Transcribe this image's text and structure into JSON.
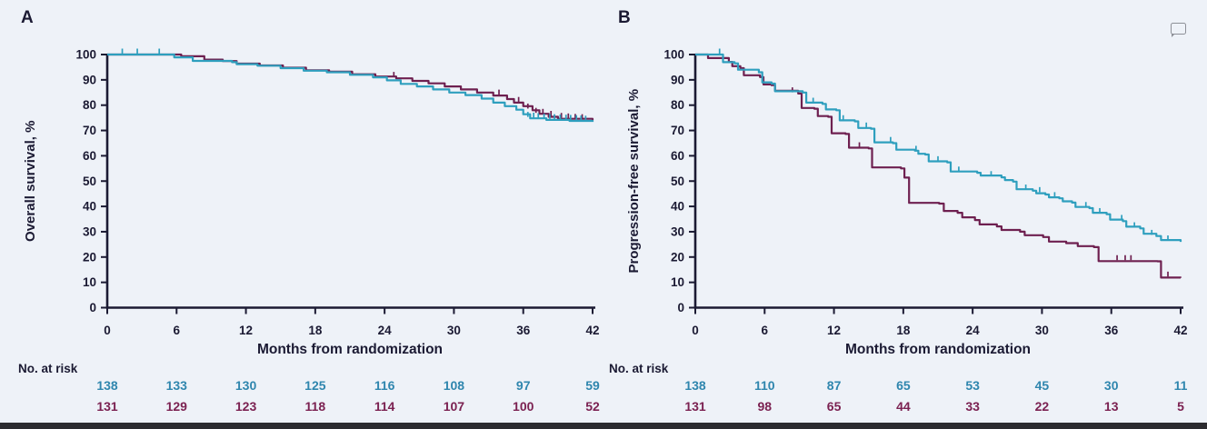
{
  "page": {
    "background_color": "#eef2f8",
    "bottom_bar_color": "#2c2c30",
    "comment_icon": "speech-bubble-icon"
  },
  "chart_data": [
    {
      "type": "line",
      "panel_label": "A",
      "ylabel": "Overall survival, %",
      "xlabel": "Months from randomization",
      "xlim": [
        0,
        42
      ],
      "ylim": [
        0,
        100
      ],
      "xticks": [
        0,
        6,
        12,
        18,
        24,
        30,
        36,
        42
      ],
      "yticks": [
        0,
        10,
        20,
        30,
        40,
        50,
        60,
        70,
        80,
        90,
        100
      ],
      "grid": false,
      "legend": "none",
      "at_risk": {
        "label": "No. at risk",
        "rows": [
          {
            "name": "group-teal",
            "color": "#2f86ae",
            "counts": [
              138,
              133,
              130,
              125,
              116,
              108,
              97,
              59
            ]
          },
          {
            "name": "group-maroon",
            "color": "#7b2151",
            "counts": [
              131,
              129,
              123,
              118,
              114,
              107,
              100,
              52
            ]
          }
        ]
      },
      "series": [
        {
          "name": "group-maroon",
          "color": "#6e2050",
          "points": [
            [
              0,
              100
            ],
            [
              6.2,
              100
            ],
            [
              6.4,
              99.3
            ],
            [
              8.2,
              99.3
            ],
            [
              8.4,
              98
            ],
            [
              10,
              97.4
            ],
            [
              11.2,
              96.4
            ],
            [
              13.2,
              95.7
            ],
            [
              15.2,
              94.8
            ],
            [
              17.2,
              93.8
            ],
            [
              19.2,
              93.2
            ],
            [
              21.2,
              92.2
            ],
            [
              23.2,
              91.3
            ],
            [
              25,
              90.6
            ],
            [
              26.4,
              89.6
            ],
            [
              27.8,
              88.6
            ],
            [
              29.2,
              87.4
            ],
            [
              30.6,
              86.2
            ],
            [
              32,
              85
            ],
            [
              33.4,
              83.8
            ],
            [
              34.6,
              82.4
            ],
            [
              35.2,
              81
            ],
            [
              36,
              79.6
            ],
            [
              36.8,
              78
            ],
            [
              37.4,
              76.6
            ],
            [
              38.2,
              75.4
            ],
            [
              39,
              74.6
            ],
            [
              42,
              74
            ]
          ],
          "censor_marks": [
            [
              24.8,
              90.8
            ],
            [
              33.9,
              83.8
            ],
            [
              35.6,
              80.9
            ],
            [
              36.4,
              78.3
            ],
            [
              37.1,
              76.6
            ],
            [
              37.7,
              76.2
            ],
            [
              38.4,
              75.4
            ],
            [
              39.3,
              74.6
            ],
            [
              39.9,
              74.4
            ],
            [
              40.5,
              74.2
            ],
            [
              41.1,
              74.1
            ]
          ]
        },
        {
          "name": "group-teal",
          "color": "#2e9fbe",
          "points": [
            [
              0,
              100
            ],
            [
              5.6,
              100
            ],
            [
              5.8,
              98.9
            ],
            [
              7.2,
              98.9
            ],
            [
              7.4,
              97.5
            ],
            [
              10.8,
              97
            ],
            [
              11.2,
              96.2
            ],
            [
              13,
              95.6
            ],
            [
              15,
              94.6
            ],
            [
              17,
              93.6
            ],
            [
              19,
              93
            ],
            [
              21,
              92
            ],
            [
              23,
              91
            ],
            [
              24.2,
              89.8
            ],
            [
              25.4,
              88.4
            ],
            [
              26.8,
              87.4
            ],
            [
              28.2,
              86.2
            ],
            [
              29.6,
              85
            ],
            [
              31,
              84
            ],
            [
              32.4,
              82.6
            ],
            [
              33.4,
              81
            ],
            [
              34.4,
              79.6
            ],
            [
              35.4,
              78.2
            ],
            [
              36,
              76.4
            ],
            [
              36.6,
              74.8
            ],
            [
              38,
              74.2
            ],
            [
              40,
              73.8
            ],
            [
              42,
              73.4
            ]
          ],
          "censor_marks": [
            [
              1.3,
              100
            ],
            [
              2.6,
              100
            ],
            [
              4.5,
              100
            ],
            [
              36.4,
              75
            ],
            [
              36.9,
              74.7
            ],
            [
              37.3,
              74.5
            ],
            [
              37.8,
              74.3
            ],
            [
              38.3,
              74.2
            ],
            [
              38.7,
              74.1
            ],
            [
              39.2,
              74
            ],
            [
              39.7,
              73.9
            ],
            [
              40.1,
              73.8
            ],
            [
              40.6,
              73.7
            ],
            [
              41,
              73.6
            ],
            [
              41.4,
              73.5
            ]
          ]
        }
      ]
    },
    {
      "type": "line",
      "panel_label": "B",
      "ylabel": "Progression-free survival, %",
      "xlabel": "Months from randomization",
      "xlim": [
        0,
        42
      ],
      "ylim": [
        0,
        100
      ],
      "xticks": [
        0,
        6,
        12,
        18,
        24,
        30,
        36,
        42
      ],
      "yticks": [
        0,
        10,
        20,
        30,
        40,
        50,
        60,
        70,
        80,
        90,
        100
      ],
      "grid": false,
      "legend": "none",
      "at_risk": {
        "label": "No. at risk",
        "rows": [
          {
            "name": "group-teal",
            "color": "#2f86ae",
            "counts": [
              138,
              110,
              87,
              65,
              53,
              45,
              30,
              11
            ]
          },
          {
            "name": "group-maroon",
            "color": "#7b2151",
            "counts": [
              131,
              98,
              65,
              44,
              33,
              22,
              13,
              5
            ]
          }
        ]
      },
      "series": [
        {
          "name": "group-maroon",
          "color": "#6e2050",
          "points": [
            [
              0,
              100
            ],
            [
              0.9,
              100
            ],
            [
              1.1,
              98.6
            ],
            [
              2.9,
              97.1
            ],
            [
              3.2,
              95.4
            ],
            [
              3.9,
              94.6
            ],
            [
              4.2,
              91.8
            ],
            [
              5.6,
              91.1
            ],
            [
              5.9,
              88.2
            ],
            [
              6.6,
              87.9
            ],
            [
              6.9,
              85.7
            ],
            [
              8.9,
              84.6
            ],
            [
              9.2,
              78.9
            ],
            [
              10.3,
              78.6
            ],
            [
              10.6,
              75.7
            ],
            [
              11.5,
              75.4
            ],
            [
              11.8,
              68.9
            ],
            [
              13,
              68.6
            ],
            [
              13.3,
              63.2
            ],
            [
              15,
              62.9
            ],
            [
              15.3,
              55.4
            ],
            [
              17.8,
              55
            ],
            [
              18.1,
              51.4
            ],
            [
              18.5,
              41.4
            ],
            [
              21.1,
              41.1
            ],
            [
              21.5,
              38.2
            ],
            [
              22.7,
              37.5
            ],
            [
              23.1,
              35.7
            ],
            [
              24.2,
              34.6
            ],
            [
              24.6,
              32.9
            ],
            [
              26.1,
              32.1
            ],
            [
              26.5,
              30.7
            ],
            [
              28.1,
              30
            ],
            [
              28.5,
              28.6
            ],
            [
              30.1,
              27.9
            ],
            [
              30.6,
              26.1
            ],
            [
              32.1,
              25.5
            ],
            [
              33.1,
              24.3
            ],
            [
              34.5,
              23.9
            ],
            [
              34.9,
              18.4
            ],
            [
              40,
              18.3
            ],
            [
              40.3,
              11.9
            ],
            [
              42,
              11.8
            ]
          ],
          "censor_marks": [
            [
              8.4,
              84.7
            ],
            [
              14.2,
              63
            ],
            [
              36.5,
              18.4
            ],
            [
              37.2,
              18.4
            ],
            [
              37.7,
              18.4
            ],
            [
              40.9,
              11.9
            ]
          ]
        },
        {
          "name": "group-teal",
          "color": "#2e9fbe",
          "points": [
            [
              0,
              100
            ],
            [
              2.2,
              100
            ],
            [
              2.4,
              97
            ],
            [
              3.4,
              96.5
            ],
            [
              3.7,
              94
            ],
            [
              5.5,
              93
            ],
            [
              5.8,
              89
            ],
            [
              6.6,
              88.5
            ],
            [
              6.9,
              85.5
            ],
            [
              9.3,
              85
            ],
            [
              9.6,
              81
            ],
            [
              11,
              80.5
            ],
            [
              11.3,
              78.3
            ],
            [
              12.2,
              78
            ],
            [
              12.5,
              74
            ],
            [
              13.8,
              73.6
            ],
            [
              14.1,
              71
            ],
            [
              15.2,
              70.7
            ],
            [
              15.5,
              65.3
            ],
            [
              17.1,
              65
            ],
            [
              17.4,
              62.4
            ],
            [
              19,
              62
            ],
            [
              19.3,
              60.8
            ],
            [
              19.9,
              60.5
            ],
            [
              20.2,
              57.8
            ],
            [
              21.8,
              57.4
            ],
            [
              22.1,
              53.8
            ],
            [
              24.4,
              53.3
            ],
            [
              24.7,
              52.2
            ],
            [
              26.5,
              51.5
            ],
            [
              26.8,
              50.4
            ],
            [
              27.5,
              49.8
            ],
            [
              27.8,
              46.8
            ],
            [
              29.2,
              46.2
            ],
            [
              29.5,
              45.2
            ],
            [
              30.3,
              44.7
            ],
            [
              30.6,
              43.6
            ],
            [
              31.5,
              43.2
            ],
            [
              31.8,
              42
            ],
            [
              32.6,
              41.5
            ],
            [
              32.9,
              39.8
            ],
            [
              34.1,
              39.3
            ],
            [
              34.4,
              37.5
            ],
            [
              35.6,
              36.9
            ],
            [
              35.9,
              34.8
            ],
            [
              37,
              34.2
            ],
            [
              37.3,
              32
            ],
            [
              38.5,
              31.3
            ],
            [
              38.8,
              29.2
            ],
            [
              39.9,
              28.3
            ],
            [
              40.3,
              26.7
            ],
            [
              42,
              26
            ]
          ],
          "censor_marks": [
            [
              2.1,
              100
            ],
            [
              10.2,
              80.6
            ],
            [
              12.8,
              73.7
            ],
            [
              14.8,
              70.8
            ],
            [
              16.9,
              65.1
            ],
            [
              19.1,
              61.6
            ],
            [
              21,
              57.5
            ],
            [
              22.8,
              53.4
            ],
            [
              25.6,
              51.6
            ],
            [
              28.6,
              46.3
            ],
            [
              29.8,
              45.3
            ],
            [
              31.1,
              43.3
            ],
            [
              33.8,
              39.4
            ],
            [
              35,
              37
            ],
            [
              36.9,
              34.3
            ],
            [
              38,
              31.4
            ],
            [
              39.5,
              28.4
            ],
            [
              40.9,
              26.2
            ]
          ]
        }
      ]
    }
  ],
  "style": {
    "axis_color": "#1b1a33",
    "text_color": "#1b1a33"
  }
}
